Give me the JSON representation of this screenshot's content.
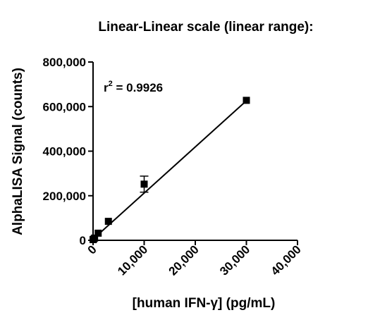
{
  "chart_data": {
    "type": "scatter",
    "title": "Linear-Linear scale (linear range):",
    "xlabel": "[human IFN-γ] (pg/mL)",
    "ylabel": "AlphaLISA Signal (counts)",
    "xlim": [
      0,
      40000
    ],
    "ylim": [
      0,
      800000
    ],
    "x_ticks": [
      0,
      10000,
      20000,
      30000,
      40000
    ],
    "x_tick_labels": [
      "0",
      "10,000",
      "20,000",
      "30,000",
      "40,000"
    ],
    "y_ticks": [
      0,
      200000,
      400000,
      600000,
      800000
    ],
    "y_tick_labels": [
      "0",
      "200,000",
      "400,000",
      "600,000",
      "800,000"
    ],
    "grid": false,
    "annotation": {
      "prefix": "r",
      "superscript": "2",
      "suffix": " = 0.9926"
    },
    "points": [
      {
        "x": 0,
        "y": 3000,
        "err": 0
      },
      {
        "x": 100,
        "y": 5000,
        "err": 0
      },
      {
        "x": 300,
        "y": 10000,
        "err": 0
      },
      {
        "x": 1000,
        "y": 32000,
        "err": 0
      },
      {
        "x": 3000,
        "y": 85000,
        "err": 0
      },
      {
        "x": 10000,
        "y": 252000,
        "err": 36000
      },
      {
        "x": 30000,
        "y": 628000,
        "err": 0
      }
    ],
    "fit": {
      "type": "linear",
      "x": [
        0,
        30000
      ],
      "y": [
        5000,
        626000
      ]
    }
  }
}
